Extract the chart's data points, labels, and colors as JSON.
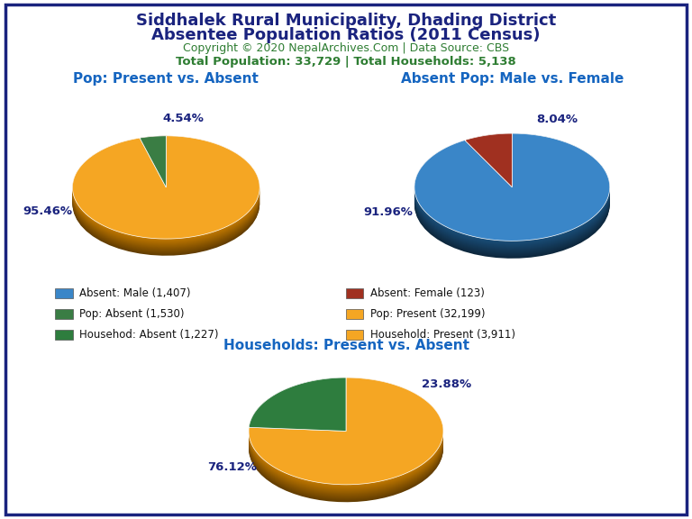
{
  "title_line1": "Siddhalek Rural Municipality, Dhading District",
  "title_line2": "Absentee Population Ratios (2011 Census)",
  "copyright": "Copyright © 2020 NepalArchives.Com | Data Source: CBS",
  "stats": "Total Population: 33,729 | Total Households: 5,138",
  "pie1_title": "Pop: Present vs. Absent",
  "pie1_values": [
    95.46,
    4.54
  ],
  "pie1_colors": [
    "#F5A623",
    "#3A7D44"
  ],
  "pie1_shadow_colors": [
    "#C47A00",
    "#8B3A00"
  ],
  "pie1_labels": [
    "95.46%",
    "4.54%"
  ],
  "pie1_label_angles": [
    200,
    82
  ],
  "pie2_title": "Absent Pop: Male vs. Female",
  "pie2_values": [
    91.96,
    8.04
  ],
  "pie2_colors": [
    "#3A86C8",
    "#A03020"
  ],
  "pie2_shadow_colors": [
    "#1A4F7A",
    "#6B1A0A"
  ],
  "pie2_labels": [
    "91.96%",
    "8.04%"
  ],
  "pie2_label_angles": [
    200,
    70
  ],
  "pie3_title": "Households: Present vs. Absent",
  "pie3_values": [
    76.12,
    23.88
  ],
  "pie3_colors": [
    "#F5A623",
    "#2E7D3E"
  ],
  "pie3_shadow_colors": [
    "#C47A00",
    "#1A5228"
  ],
  "pie3_labels": [
    "76.12%",
    "23.88%"
  ],
  "pie3_label_angles": [
    210,
    40
  ],
  "legend_items": [
    {
      "label": "Absent: Male (1,407)",
      "color": "#3A86C8"
    },
    {
      "label": "Absent: Female (123)",
      "color": "#A03020"
    },
    {
      "label": "Pop: Absent (1,530)",
      "color": "#3A7D44"
    },
    {
      "label": "Pop: Present (32,199)",
      "color": "#F5A623"
    },
    {
      "label": "Househod: Absent (1,227)",
      "color": "#2E7D3E"
    },
    {
      "label": "Household: Present (3,911)",
      "color": "#F5A623"
    }
  ],
  "title_color": "#1A237E",
  "copyright_color": "#2E7D32",
  "stats_color": "#2E7D32",
  "subtitle_color": "#1565C0",
  "label_color": "#1A237E",
  "background_color": "#FFFFFF",
  "border_color": "#1A237E"
}
